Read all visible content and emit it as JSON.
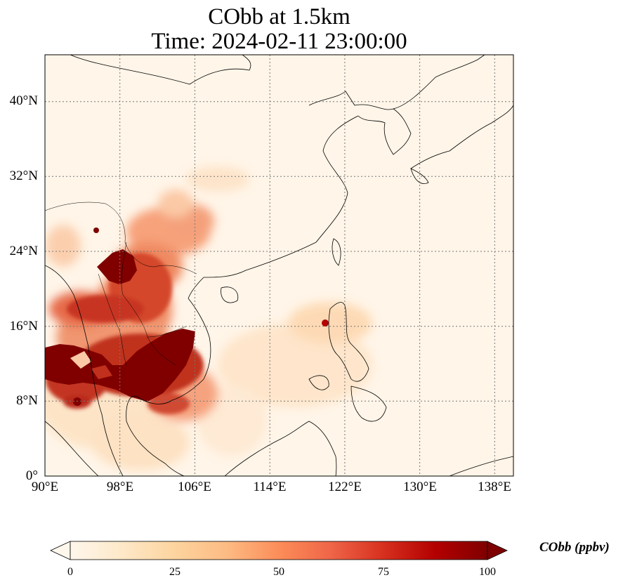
{
  "title": {
    "line1": "CObb at 1.5km",
    "line2": "Time: 2024-02-11 23:00:00"
  },
  "map": {
    "region": "East Asia / Southeast Asia",
    "lon_range": [
      90,
      140
    ],
    "lat_range": [
      0,
      45
    ],
    "lat_ticks": [
      "40°N",
      "32°N",
      "24°N",
      "16°N",
      "8°N",
      "0°"
    ],
    "lat_tick_values": [
      40,
      32,
      24,
      16,
      8,
      0
    ],
    "lon_ticks": [
      "90°E",
      "98°E",
      "106°E",
      "114°E",
      "122°E",
      "130°E",
      "138°E"
    ],
    "lon_tick_values": [
      90,
      98,
      106,
      114,
      122,
      130,
      138
    ],
    "gridlines": true
  },
  "colorbar": {
    "label": "CObb (ppbv)",
    "ticks": [
      "0",
      "25",
      "50",
      "75",
      "100"
    ],
    "min": 0,
    "max": 100,
    "colormap": "OrRd",
    "extend": "both",
    "colors": [
      "#fff7ec",
      "#fee8c8",
      "#fdd49e",
      "#fdbb84",
      "#fc8d59",
      "#ef6548",
      "#d7301f",
      "#b30000",
      "#7f0000"
    ]
  },
  "plumes": [
    {
      "region": "Indochina (Cambodia / Thailand)",
      "level": 100
    },
    {
      "region": "Northern Laos / Myanmar border",
      "level": 100
    },
    {
      "region": "Southern China (Yunnan / Guangxi)",
      "level": 40
    },
    {
      "region": "Northern Luzon",
      "level": 70
    }
  ]
}
